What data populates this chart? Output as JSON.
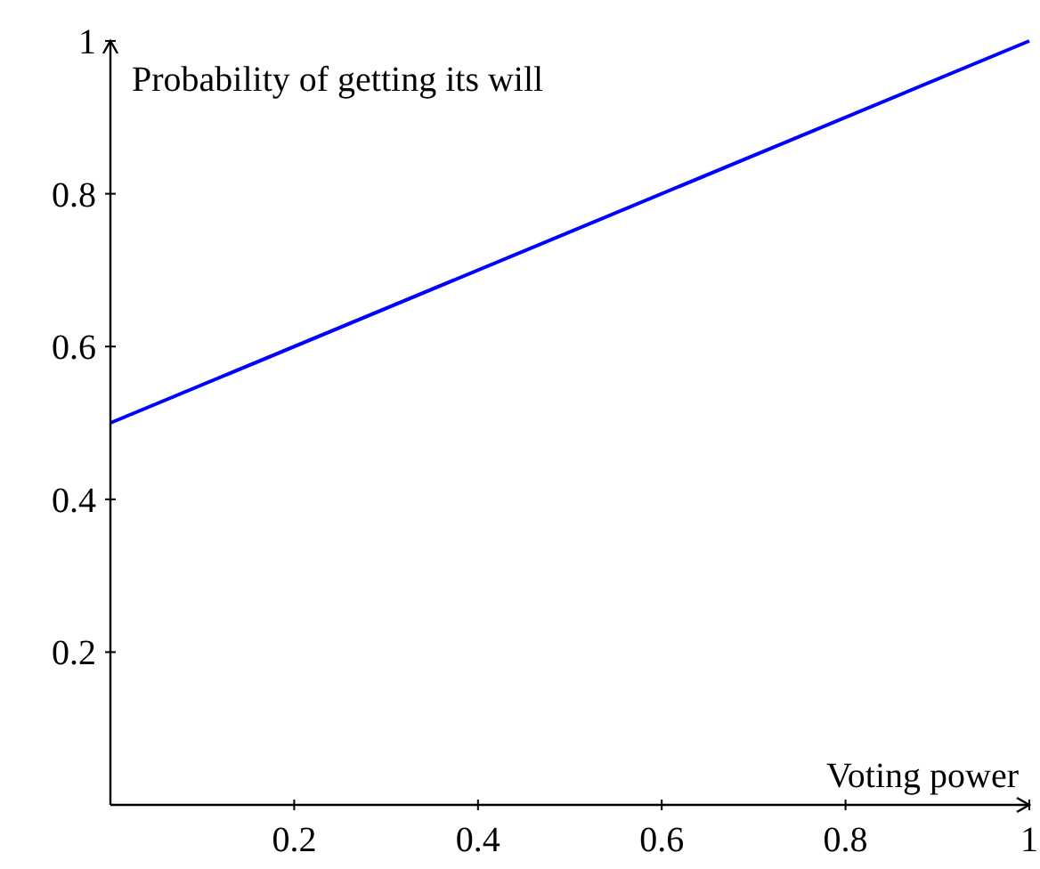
{
  "chart_data": {
    "type": "line",
    "xlabel": "Voting power",
    "ylabel": "Probability of getting its will",
    "x": [
      0,
      1
    ],
    "series": [
      {
        "color": "#0000ff",
        "values": [
          0.5,
          1
        ]
      }
    ],
    "xlim": [
      0,
      1
    ],
    "ylim": [
      0,
      1
    ],
    "xticks": [
      0.2,
      0.4,
      0.6,
      0.8,
      1
    ],
    "yticks": [
      0.2,
      0.4,
      0.6,
      0.8,
      1
    ],
    "grid": false,
    "marker": "none",
    "line_style": "solid"
  }
}
